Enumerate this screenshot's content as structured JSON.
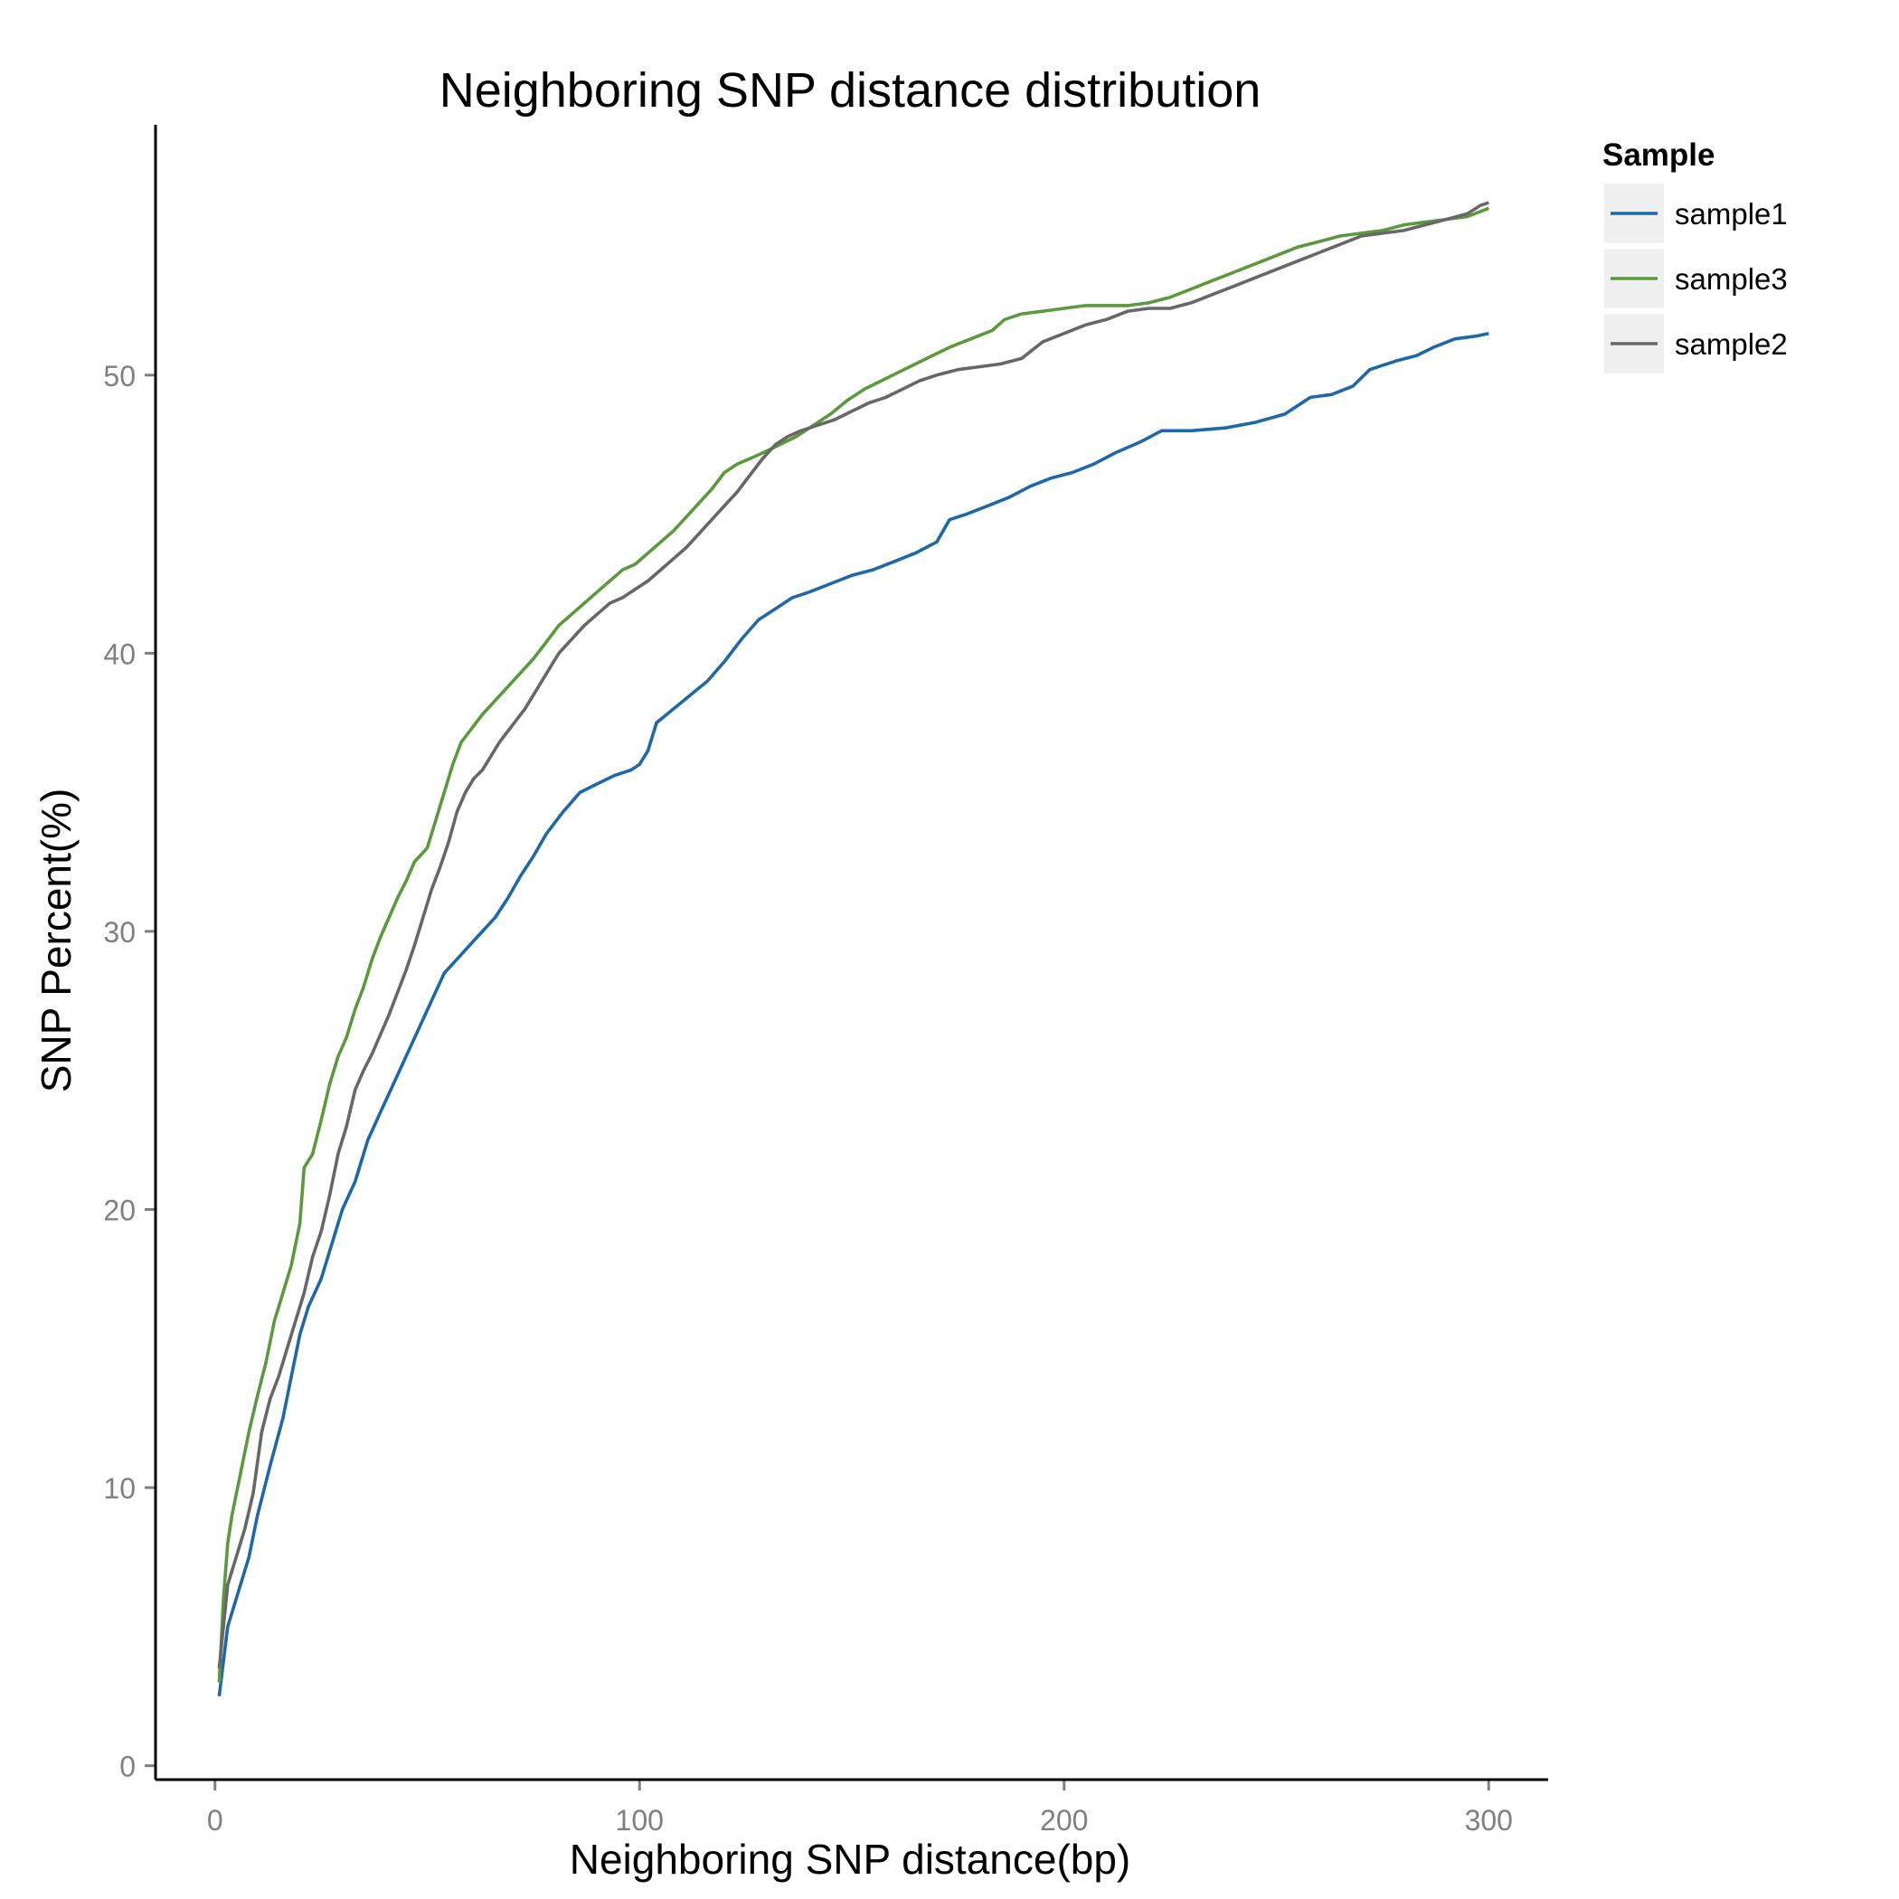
{
  "chart_data": {
    "type": "line",
    "title": "Neighboring SNP distance distribution",
    "xlabel": "Neighboring SNP distance(bp)",
    "ylabel": "SNP Percent(%)",
    "xlim": [
      -14,
      314
    ],
    "ylim": [
      -0.5,
      59
    ],
    "x_ticks": [
      0,
      100,
      200,
      300
    ],
    "y_ticks": [
      0,
      10,
      20,
      30,
      40,
      50
    ],
    "grid": false,
    "legend": {
      "title": "Sample",
      "position": "right"
    },
    "series": [
      {
        "name": "sample1",
        "color": "#1f68a8",
        "points": [
          [
            1,
            2.5
          ],
          [
            3,
            5
          ],
          [
            5,
            6
          ],
          [
            8,
            7.5
          ],
          [
            10,
            9
          ],
          [
            13,
            10.8
          ],
          [
            16,
            12.5
          ],
          [
            18,
            14
          ],
          [
            20,
            15.5
          ],
          [
            22,
            16.5
          ],
          [
            25,
            17.5
          ],
          [
            28,
            19
          ],
          [
            30,
            20
          ],
          [
            33,
            21
          ],
          [
            36,
            22.5
          ],
          [
            39,
            23.5
          ],
          [
            42,
            24.5
          ],
          [
            45,
            25.5
          ],
          [
            48,
            26.5
          ],
          [
            51,
            27.5
          ],
          [
            54,
            28.5
          ],
          [
            57,
            29
          ],
          [
            60,
            29.5
          ],
          [
            63,
            30
          ],
          [
            66,
            30.5
          ],
          [
            69,
            31.2
          ],
          [
            72,
            32
          ],
          [
            75,
            32.7
          ],
          [
            78,
            33.5
          ],
          [
            82,
            34.3
          ],
          [
            86,
            35
          ],
          [
            90,
            35.3
          ],
          [
            94,
            35.6
          ],
          [
            98,
            35.8
          ],
          [
            100,
            36
          ],
          [
            102,
            36.5
          ],
          [
            104,
            37.5
          ],
          [
            108,
            38
          ],
          [
            112,
            38.5
          ],
          [
            116,
            39
          ],
          [
            120,
            39.7
          ],
          [
            124,
            40.5
          ],
          [
            128,
            41.2
          ],
          [
            132,
            41.6
          ],
          [
            136,
            42
          ],
          [
            140,
            42.2
          ],
          [
            145,
            42.5
          ],
          [
            150,
            42.8
          ],
          [
            155,
            43
          ],
          [
            160,
            43.3
          ],
          [
            165,
            43.6
          ],
          [
            170,
            44
          ],
          [
            173,
            44.8
          ],
          [
            177,
            45
          ],
          [
            182,
            45.3
          ],
          [
            187,
            45.6
          ],
          [
            192,
            46
          ],
          [
            197,
            46.3
          ],
          [
            202,
            46.5
          ],
          [
            207,
            46.8
          ],
          [
            212,
            47.2
          ],
          [
            218,
            47.6
          ],
          [
            223,
            48
          ],
          [
            230,
            48
          ],
          [
            238,
            48.1
          ],
          [
            245,
            48.3
          ],
          [
            252,
            48.6
          ],
          [
            258,
            49.2
          ],
          [
            263,
            49.3
          ],
          [
            268,
            49.6
          ],
          [
            272,
            50.2
          ],
          [
            278,
            50.5
          ],
          [
            283,
            50.7
          ],
          [
            287,
            51
          ],
          [
            292,
            51.3
          ],
          [
            297,
            51.4
          ],
          [
            300,
            51.5
          ]
        ]
      },
      {
        "name": "sample3",
        "color": "#5a9a3c",
        "points": [
          [
            1,
            3
          ],
          [
            2,
            6
          ],
          [
            3,
            8
          ],
          [
            4,
            9
          ],
          [
            6,
            10.5
          ],
          [
            8,
            12
          ],
          [
            10,
            13.3
          ],
          [
            12,
            14.5
          ],
          [
            14,
            16
          ],
          [
            16,
            17
          ],
          [
            18,
            18
          ],
          [
            20,
            19.5
          ],
          [
            21,
            21.5
          ],
          [
            23,
            22
          ],
          [
            25,
            23.2
          ],
          [
            27,
            24.5
          ],
          [
            29,
            25.5
          ],
          [
            31,
            26.2
          ],
          [
            33,
            27.2
          ],
          [
            35,
            28
          ],
          [
            37,
            29
          ],
          [
            39,
            29.8
          ],
          [
            41,
            30.5
          ],
          [
            43,
            31.2
          ],
          [
            45,
            31.8
          ],
          [
            47,
            32.5
          ],
          [
            50,
            33
          ],
          [
            52,
            34
          ],
          [
            54,
            35
          ],
          [
            56,
            36
          ],
          [
            58,
            36.8
          ],
          [
            60,
            37.2
          ],
          [
            63,
            37.8
          ],
          [
            66,
            38.3
          ],
          [
            69,
            38.8
          ],
          [
            72,
            39.3
          ],
          [
            75,
            39.8
          ],
          [
            78,
            40.4
          ],
          [
            81,
            41
          ],
          [
            84,
            41.4
          ],
          [
            87,
            41.8
          ],
          [
            90,
            42.2
          ],
          [
            93,
            42.6
          ],
          [
            96,
            43
          ],
          [
            99,
            43.2
          ],
          [
            102,
            43.6
          ],
          [
            105,
            44
          ],
          [
            108,
            44.4
          ],
          [
            111,
            44.9
          ],
          [
            114,
            45.4
          ],
          [
            117,
            45.9
          ],
          [
            120,
            46.5
          ],
          [
            123,
            46.8
          ],
          [
            126,
            47
          ],
          [
            129,
            47.2
          ],
          [
            133,
            47.5
          ],
          [
            137,
            47.8
          ],
          [
            141,
            48.2
          ],
          [
            145,
            48.6
          ],
          [
            149,
            49.1
          ],
          [
            153,
            49.5
          ],
          [
            157,
            49.8
          ],
          [
            161,
            50.1
          ],
          [
            165,
            50.4
          ],
          [
            169,
            50.7
          ],
          [
            173,
            51
          ],
          [
            178,
            51.3
          ],
          [
            183,
            51.6
          ],
          [
            186,
            52
          ],
          [
            190,
            52.2
          ],
          [
            195,
            52.3
          ],
          [
            200,
            52.4
          ],
          [
            205,
            52.5
          ],
          [
            210,
            52.5
          ],
          [
            215,
            52.5
          ],
          [
            220,
            52.6
          ],
          [
            225,
            52.8
          ],
          [
            230,
            53.1
          ],
          [
            235,
            53.4
          ],
          [
            240,
            53.7
          ],
          [
            245,
            54
          ],
          [
            250,
            54.3
          ],
          [
            255,
            54.6
          ],
          [
            260,
            54.8
          ],
          [
            265,
            55
          ],
          [
            270,
            55.1
          ],
          [
            275,
            55.2
          ],
          [
            280,
            55.4
          ],
          [
            285,
            55.5
          ],
          [
            290,
            55.6
          ],
          [
            295,
            55.7
          ],
          [
            300,
            56
          ]
        ]
      },
      {
        "name": "sample2",
        "color": "#676767",
        "points": [
          [
            1,
            3.5
          ],
          [
            3,
            6.5
          ],
          [
            5,
            7.5
          ],
          [
            7,
            8.5
          ],
          [
            9,
            9.8
          ],
          [
            11,
            12
          ],
          [
            13,
            13.2
          ],
          [
            15,
            14
          ],
          [
            17,
            15
          ],
          [
            19,
            16
          ],
          [
            21,
            17
          ],
          [
            23,
            18.3
          ],
          [
            25,
            19.2
          ],
          [
            27,
            20.5
          ],
          [
            29,
            22
          ],
          [
            31,
            23
          ],
          [
            33,
            24.3
          ],
          [
            35,
            25
          ],
          [
            37,
            25.6
          ],
          [
            39,
            26.3
          ],
          [
            41,
            27
          ],
          [
            43,
            27.8
          ],
          [
            45,
            28.6
          ],
          [
            47,
            29.5
          ],
          [
            49,
            30.5
          ],
          [
            51,
            31.5
          ],
          [
            53,
            32.3
          ],
          [
            55,
            33.2
          ],
          [
            57,
            34.3
          ],
          [
            59,
            35
          ],
          [
            61,
            35.5
          ],
          [
            63,
            35.8
          ],
          [
            65,
            36.3
          ],
          [
            67,
            36.8
          ],
          [
            69,
            37.2
          ],
          [
            71,
            37.6
          ],
          [
            73,
            38
          ],
          [
            75,
            38.5
          ],
          [
            77,
            39
          ],
          [
            79,
            39.5
          ],
          [
            81,
            40
          ],
          [
            84,
            40.5
          ],
          [
            87,
            41
          ],
          [
            90,
            41.4
          ],
          [
            93,
            41.8
          ],
          [
            96,
            42
          ],
          [
            99,
            42.3
          ],
          [
            102,
            42.6
          ],
          [
            105,
            43
          ],
          [
            108,
            43.4
          ],
          [
            111,
            43.8
          ],
          [
            114,
            44.3
          ],
          [
            117,
            44.8
          ],
          [
            120,
            45.3
          ],
          [
            123,
            45.8
          ],
          [
            126,
            46.4
          ],
          [
            129,
            47
          ],
          [
            132,
            47.5
          ],
          [
            135,
            47.8
          ],
          [
            138,
            48
          ],
          [
            142,
            48.2
          ],
          [
            146,
            48.4
          ],
          [
            150,
            48.7
          ],
          [
            154,
            49
          ],
          [
            158,
            49.2
          ],
          [
            162,
            49.5
          ],
          [
            166,
            49.8
          ],
          [
            170,
            50
          ],
          [
            175,
            50.2
          ],
          [
            180,
            50.3
          ],
          [
            185,
            50.4
          ],
          [
            190,
            50.6
          ],
          [
            195,
            51.2
          ],
          [
            200,
            51.5
          ],
          [
            205,
            51.8
          ],
          [
            210,
            52
          ],
          [
            215,
            52.3
          ],
          [
            220,
            52.4
          ],
          [
            225,
            52.4
          ],
          [
            230,
            52.6
          ],
          [
            235,
            52.9
          ],
          [
            240,
            53.2
          ],
          [
            245,
            53.5
          ],
          [
            250,
            53.8
          ],
          [
            255,
            54.1
          ],
          [
            260,
            54.4
          ],
          [
            265,
            54.7
          ],
          [
            270,
            55
          ],
          [
            275,
            55.1
          ],
          [
            280,
            55.2
          ],
          [
            285,
            55.4
          ],
          [
            290,
            55.6
          ],
          [
            295,
            55.8
          ],
          [
            298,
            56.1
          ],
          [
            300,
            56.2
          ]
        ]
      }
    ]
  }
}
